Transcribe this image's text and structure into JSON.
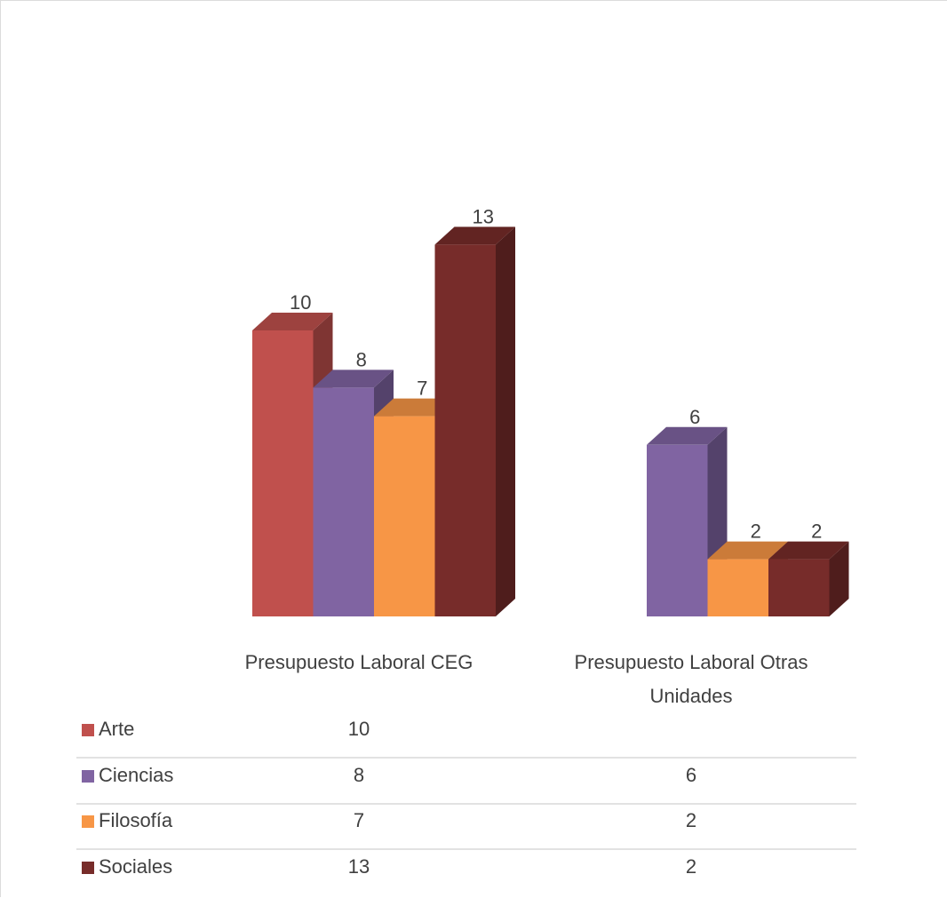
{
  "chart_data": {
    "type": "bar",
    "style": "3d-clustered-column",
    "title": "",
    "xlabel": "",
    "ylabel": "",
    "ylim": [
      0,
      13
    ],
    "grid": false,
    "categories": [
      [
        "Presupuesto Laboral CEG"
      ],
      [
        "Presupuesto Laboral Otras",
        "Unidades"
      ]
    ],
    "series": [
      {
        "name": "Arte",
        "color": "#C0504D",
        "values": [
          10,
          null
        ]
      },
      {
        "name": "Ciencias",
        "color": "#8064A2",
        "values": [
          8,
          6
        ]
      },
      {
        "name": "Filosofía",
        "color": "#F79646",
        "values": [
          7,
          2
        ]
      },
      {
        "name": "Sociales",
        "color": "#772C2A",
        "values": [
          13,
          2
        ]
      }
    ],
    "legend": "data-table-below",
    "data_table": true
  }
}
